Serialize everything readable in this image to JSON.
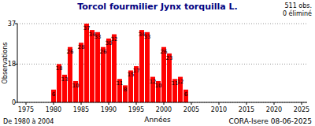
{
  "chart_data": {
    "type": "bar",
    "title": "Torcol fourmilier  Jynx torquilla L.",
    "subtitle": "De 1980 à 2004",
    "annotations": [
      "511 obs.",
      "0 éliminé",
      "CORA-Isere 08-06-2025"
    ],
    "x_label": "Années",
    "y_label": "Observations",
    "x": [
      1980,
      1981,
      1982,
      1983,
      1984,
      1985,
      1986,
      1987,
      1988,
      1989,
      1990,
      1991,
      1992,
      1993,
      1994,
      1995,
      1996,
      1997,
      1998,
      1999,
      2000,
      2001,
      2002,
      2003,
      2004
    ],
    "values": [
      6,
      18,
      13,
      26,
      10,
      28,
      37,
      34,
      33,
      26,
      30,
      32,
      11,
      8,
      15,
      17,
      34,
      33,
      12,
      10,
      26,
      23,
      11,
      12,
      6
    ],
    "color": "#ff0000",
    "xlim": [
      1975,
      2025
    ],
    "xticks": [
      1975,
      1980,
      1985,
      1990,
      1995,
      2000,
      2005,
      2010,
      2015,
      2020,
      2025
    ],
    "ylim": [
      0,
      37
    ],
    "yticks": [
      0,
      18,
      37
    ],
    "grid": true,
    "data_labels": true
  }
}
